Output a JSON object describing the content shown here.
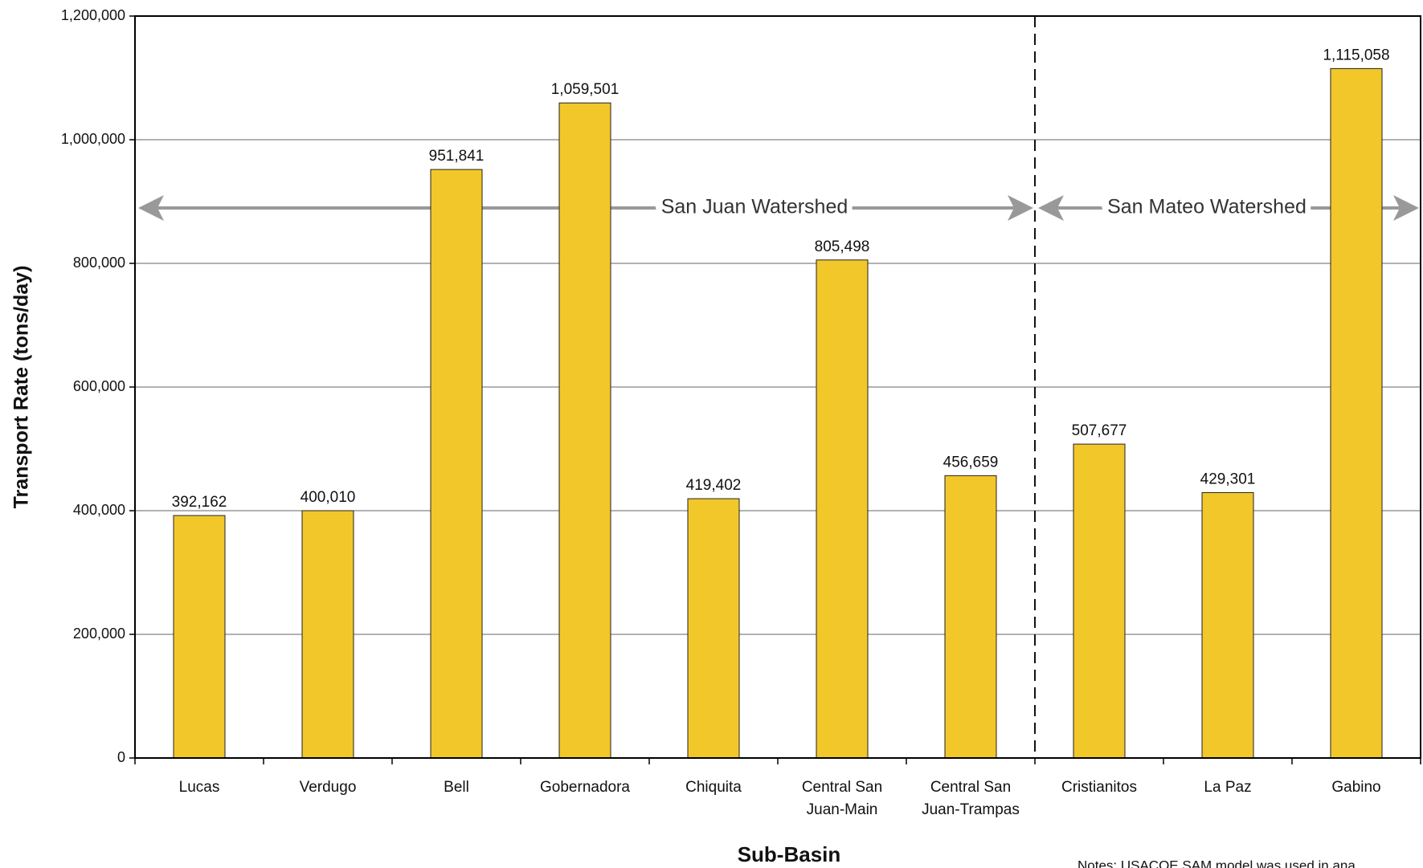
{
  "chart_data": {
    "type": "bar",
    "categories": [
      "Lucas",
      "Verdugo",
      "Bell",
      "Gobernadora",
      "Chiquita",
      "Central San Juan-Main",
      "Central San Juan-Trampas",
      "Cristianitos",
      "La Paz",
      "Gabino"
    ],
    "values": [
      392162,
      400010,
      951841,
      1059501,
      419402,
      805498,
      456659,
      507677,
      429301,
      1115058
    ],
    "value_labels": [
      "392,162",
      "400,010",
      "951,841",
      "1,059,501",
      "419,402",
      "805,498",
      "456,659",
      "507,677",
      "429,301",
      "1,115,058"
    ],
    "color": "#f2c72a",
    "ylim": [
      0,
      1200000
    ],
    "yticks": [
      0,
      {
        "value": 200000,
        "label": "200,000"
      },
      {
        "value": 400000,
        "label": "400,000"
      },
      {
        "value": 600000,
        "label": "600,000"
      },
      {
        "value": 800000,
        "label": "800,000"
      },
      {
        "value": 1000000,
        "label": "1,000,000"
      },
      {
        "value": 1200000,
        "label": "1,200,000"
      }
    ],
    "grid": true,
    "x_label": "Sub-Basin",
    "y_label": "Transport Rate (tons/day)",
    "annotations": [
      "San Juan Watershed",
      "San Mateo Watershed"
    ],
    "note": "Notes: USACOE SAM model was used in ana"
  }
}
